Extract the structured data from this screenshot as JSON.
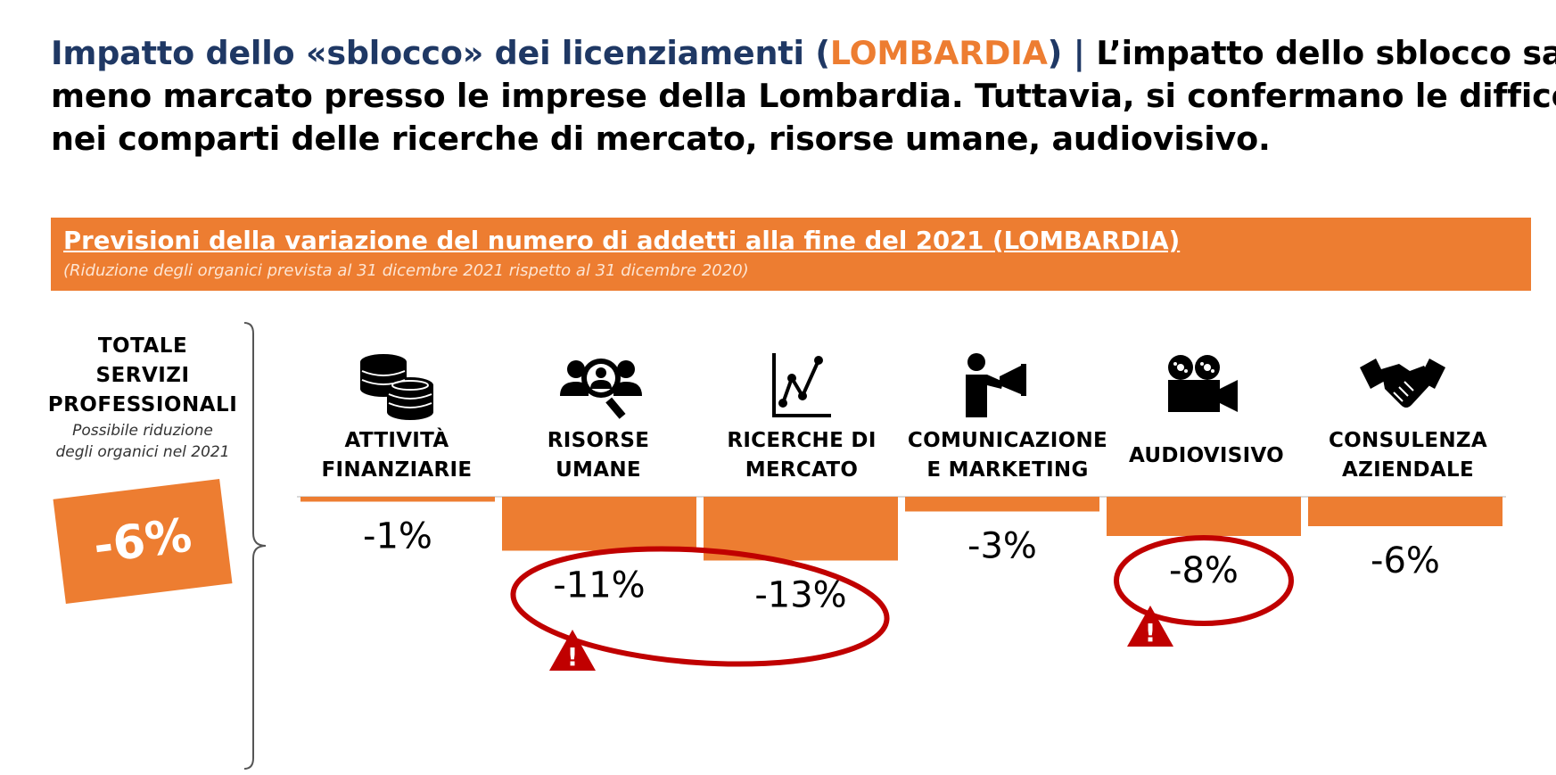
{
  "headline": {
    "part1": "Impatto dello «sblocco» dei licenziamenti (",
    "region": "LOMBARDIA",
    "part2": ") | ",
    "line1_rest": "L’impatto dello sblocco sarà",
    "line2": "meno marcato presso le imprese della Lombardia. Tuttavia, si confermano le difficoltà",
    "line3": "nei comparti delle ricerche di mercato, risorse umane, audiovisivo."
  },
  "banner": {
    "title": "Previsioni della variazione del numero di addetti alla fine del 2021 (LOMBARDIA)",
    "subtitle": "(Riduzione degli organici prevista al 31 dicembre 2021 rispetto al 31 dicembre 2020)"
  },
  "total": {
    "title_line1": "TOTALE",
    "title_line2": "SERVIZI",
    "title_line3": "PROFESSIONALI",
    "sub_line1": "Possibile riduzione",
    "sub_line2": "degli organici nel 2021",
    "value": "-6%"
  },
  "colors": {
    "accent": "#ed7d31",
    "title_blue": "#1f3864",
    "alert_red": "#c00000"
  },
  "categories": [
    {
      "line1": "ATTIVITÀ",
      "line2": "FINANZIARIE",
      "icon": "coins-icon"
    },
    {
      "line1": "RISORSE",
      "line2": "UMANE",
      "icon": "people-search-icon"
    },
    {
      "line1": "RICERCHE DI",
      "line2": "MERCATO",
      "icon": "line-chart-icon"
    },
    {
      "line1": "COMUNICAZIONE",
      "line2": "E MARKETING",
      "icon": "megaphone-icon"
    },
    {
      "line1": "AUDIOVISIVO",
      "line2": "",
      "icon": "film-camera-icon"
    },
    {
      "line1": "CONSULENZA",
      "line2": "AZIENDALE",
      "icon": "handshake-icon"
    }
  ],
  "chart_data": {
    "type": "bar",
    "categories": [
      "ATTIVITÀ FINANZIARIE",
      "RISORSE UMANE",
      "RICERCHE DI MERCATO",
      "COMUNICAZIONE E MARKETING",
      "AUDIOVISIVO",
      "CONSULENZA AZIENDALE"
    ],
    "values": [
      -1,
      -11,
      -13,
      -3,
      -8,
      -6
    ],
    "labels": [
      "-1%",
      "-11%",
      "-13%",
      "-3%",
      "-8%",
      "-6%"
    ],
    "highlighted": [
      "RISORSE UMANE",
      "RICERCHE DI MERCATO",
      "AUDIOVISIVO"
    ],
    "ylim": [
      -16,
      0
    ]
  }
}
